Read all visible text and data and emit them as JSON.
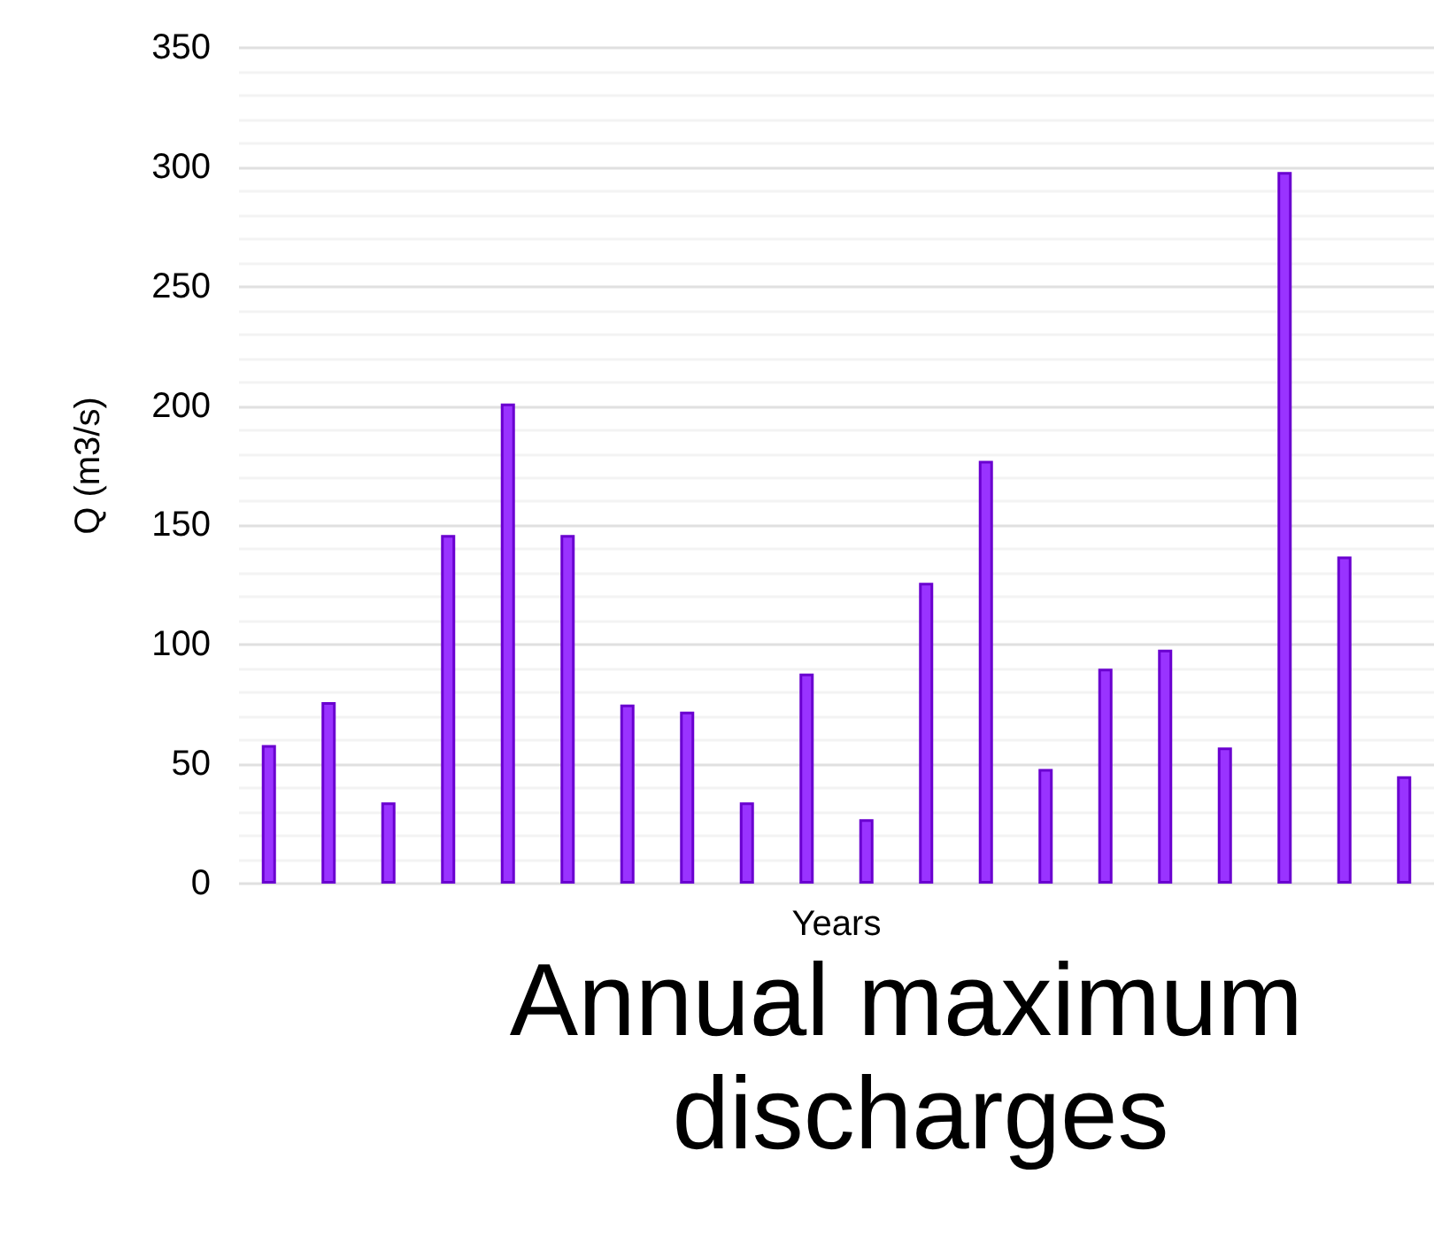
{
  "chart_data": {
    "type": "bar",
    "title": "Annual maximum discharges",
    "xlabel": "Years",
    "ylabel": "Q (m3/s)",
    "categories": [
      null,
      null,
      null,
      null,
      null,
      null,
      null,
      null,
      null,
      null,
      null,
      null,
      null,
      null,
      null,
      null,
      null,
      null,
      null,
      null
    ],
    "values": [
      58,
      76,
      34,
      146,
      201,
      146,
      75,
      72,
      34,
      88,
      27,
      126,
      177,
      48,
      90,
      98,
      57,
      298,
      137,
      45
    ],
    "color": "#9933ff",
    "ylim": [
      0,
      350
    ],
    "yticks": [
      0,
      50,
      100,
      150,
      200,
      250,
      300,
      350
    ],
    "grid": "y"
  }
}
